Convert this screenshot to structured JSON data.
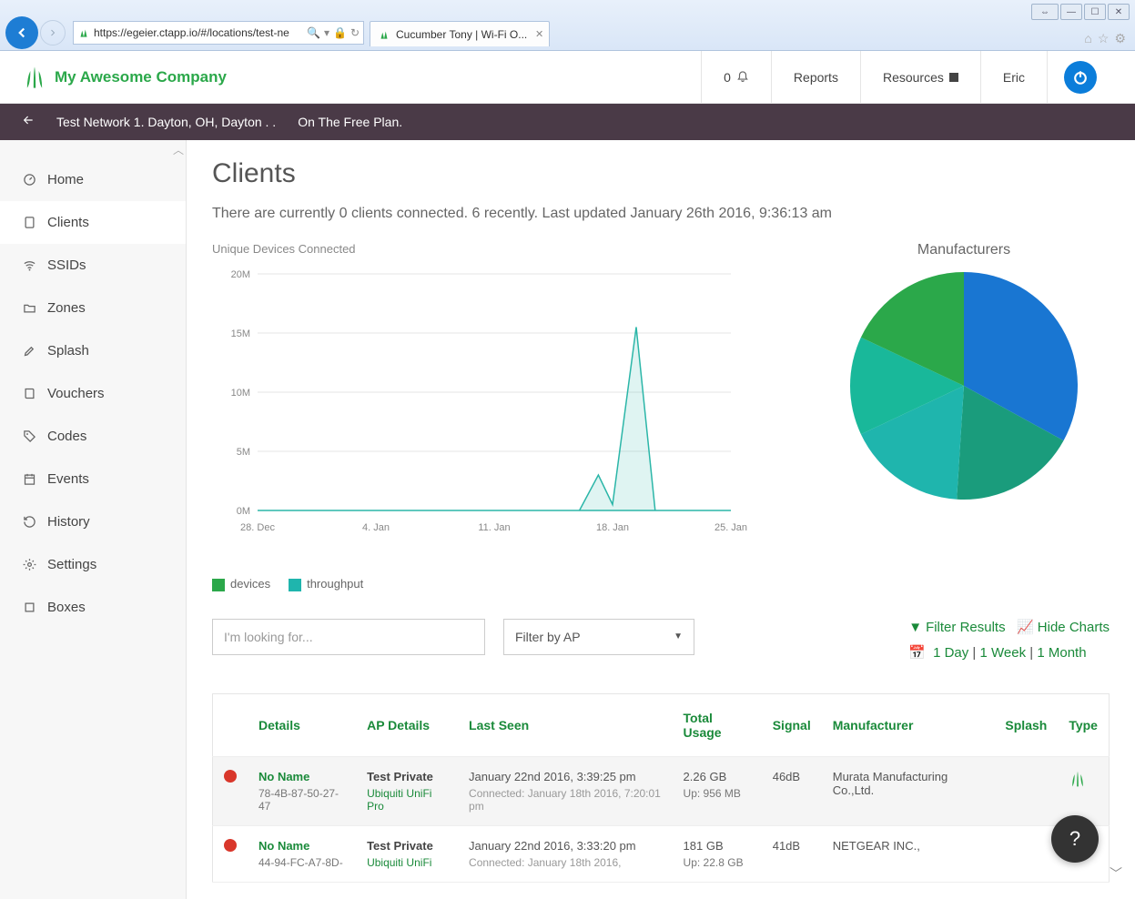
{
  "browser": {
    "url": "https://egeier.ctapp.io/#/locations/test-ne",
    "tab_title": "Cucumber Tony | Wi-Fi O..."
  },
  "header": {
    "company": "My Awesome Company",
    "notif_count": "0",
    "reports": "Reports",
    "resources": "Resources",
    "user": "Eric"
  },
  "crumb": {
    "network": "Test Network 1. Dayton, OH, Dayton . .",
    "plan": "On The Free Plan."
  },
  "sidebar": {
    "items": [
      {
        "label": "Home",
        "icon": "dashboard-icon"
      },
      {
        "label": "Clients",
        "icon": "device-icon"
      },
      {
        "label": "SSIDs",
        "icon": "wifi-icon"
      },
      {
        "label": "Zones",
        "icon": "folder-icon"
      },
      {
        "label": "Splash",
        "icon": "brush-icon"
      },
      {
        "label": "Vouchers",
        "icon": "book-icon"
      },
      {
        "label": "Codes",
        "icon": "tags-icon"
      },
      {
        "label": "Events",
        "icon": "calendar-icon"
      },
      {
        "label": "History",
        "icon": "history-icon"
      },
      {
        "label": "Settings",
        "icon": "cogs-icon"
      },
      {
        "label": "Boxes",
        "icon": "box-icon"
      }
    ]
  },
  "page": {
    "title": "Clients",
    "status": "There are currently 0 clients connected. 6 recently. Last updated January 26th 2016, 9:36:13 am"
  },
  "line_chart": {
    "subtitle": "Unique Devices Connected",
    "ylim": [
      0,
      20
    ],
    "yticks": [
      "0M",
      "5M",
      "10M",
      "15M",
      "20M"
    ],
    "xticks": [
      "28. Dec",
      "4. Jan",
      "11. Jan",
      "18. Jan",
      "25. Jan"
    ],
    "series_color": "#2bb6a8",
    "fill_opacity": 0.15,
    "points": [
      {
        "x": 0,
        "y": 0
      },
      {
        "x": 0.68,
        "y": 0
      },
      {
        "x": 0.72,
        "y": 3
      },
      {
        "x": 0.75,
        "y": 0.5
      },
      {
        "x": 0.8,
        "y": 15.5
      },
      {
        "x": 0.84,
        "y": 0
      },
      {
        "x": 1.0,
        "y": 0
      }
    ],
    "legend": [
      {
        "label": "devices",
        "color": "#2ba84a"
      },
      {
        "label": "throughput",
        "color": "#1fb5ad"
      }
    ]
  },
  "pie_chart": {
    "title": "Manufacturers",
    "slices": [
      {
        "value": 33,
        "color": "#1976d2"
      },
      {
        "value": 18,
        "color": "#1a9c7c"
      },
      {
        "value": 17,
        "color": "#1fb5ad"
      },
      {
        "value": 14,
        "color": "#19b89a"
      },
      {
        "value": 18,
        "color": "#2ba84a"
      }
    ]
  },
  "filters": {
    "search_placeholder": "I'm looking for...",
    "ap_filter": "Filter by AP",
    "filter_results": "Filter Results",
    "hide_charts": "Hide Charts",
    "range_1": "1 Day",
    "range_2": "1 Week",
    "range_3": "1 Month"
  },
  "table": {
    "headers": [
      "",
      "Details",
      "AP Details",
      "Last Seen",
      "Total Usage",
      "Signal",
      "Manufacturer",
      "Splash",
      "Type"
    ],
    "rows": [
      {
        "status_color": "#d9372b",
        "name": "No Name",
        "mac": "78-4B-87-50-27-47",
        "ap_name": "Test Private",
        "ap_type": "Ubiquiti UniFi Pro",
        "last_seen": "January 22nd 2016, 3:39:25 pm",
        "connected": "Connected: January 18th 2016, 7:20:01 pm",
        "usage": "2.26 GB",
        "usage_up": "Up: 956 MB",
        "signal": "46dB",
        "manufacturer": "Murata Manufacturing Co.,Ltd.",
        "splash": "",
        "type_icon": true
      },
      {
        "status_color": "#d9372b",
        "name": "No Name",
        "mac": "44-94-FC-A7-8D-",
        "ap_name": "Test Private",
        "ap_type": "Ubiquiti UniFi",
        "last_seen": "January 22nd 2016, 3:33:20 pm",
        "connected": "Connected: January 18th 2016,",
        "usage": "181 GB",
        "usage_up": "Up: 22.8 GB",
        "signal": "41dB",
        "manufacturer": "NETGEAR INC.,",
        "splash": "",
        "type_icon": true
      }
    ]
  }
}
